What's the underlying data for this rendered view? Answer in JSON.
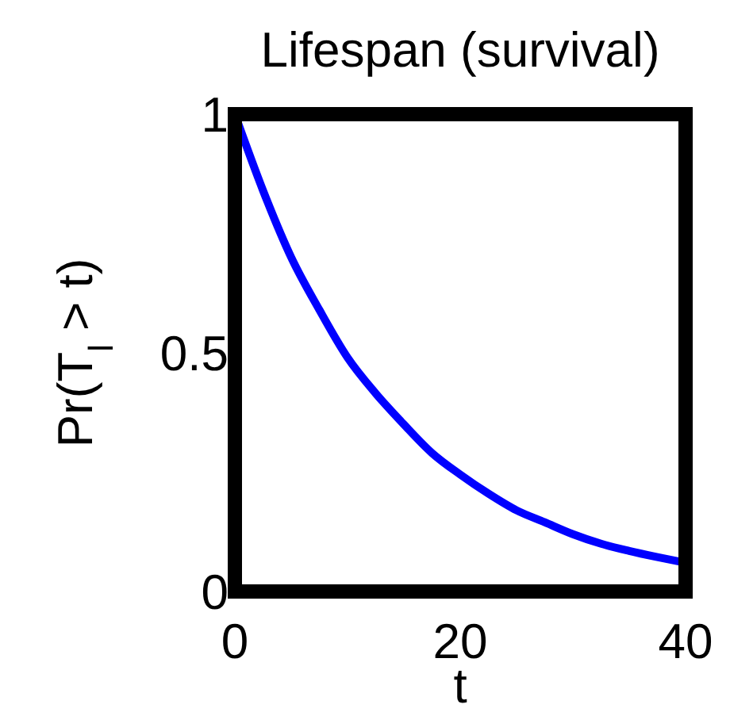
{
  "chart_data": {
    "type": "line",
    "title": "Lifespan (survival)",
    "xlabel": "t",
    "ylabel": "Pr(T$_{l}$ > t)",
    "x": [
      0,
      2.5,
      5,
      7.5,
      10,
      12.5,
      15,
      17.5,
      20,
      22.5,
      25,
      27.5,
      30,
      32.5,
      35,
      37.5,
      40
    ],
    "series": [
      {
        "color": "#0000ff",
        "values": [
          1,
          0.84,
          0.7,
          0.59,
          0.49,
          0.415,
          0.35,
          0.29,
          0.245,
          0.205,
          0.17,
          0.145,
          0.12,
          0.1,
          0.085,
          0.072,
          0.06
        ]
      }
    ],
    "xlim": [
      0,
      40
    ],
    "ylim": [
      0,
      1
    ],
    "xticks": [
      0,
      20,
      40
    ],
    "yticks": [
      0,
      0.5,
      1
    ],
    "grid": false,
    "marker": "none",
    "line_style": "solid"
  }
}
